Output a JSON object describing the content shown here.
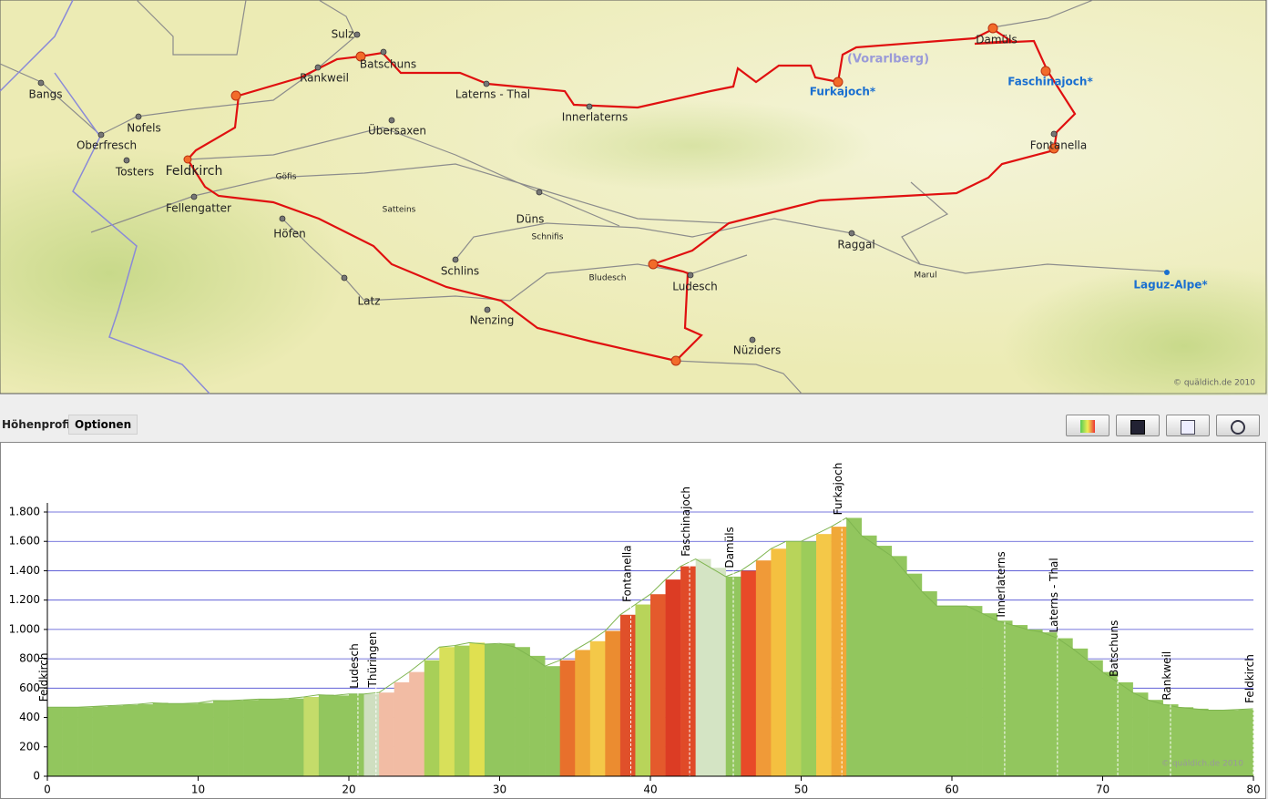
{
  "map": {
    "places": [
      "Sulz",
      "Batschuns",
      "Rankweil",
      "Bangs",
      "Nofels",
      "Oberfresch",
      "Tosters",
      "Feldkirch",
      "Göfis",
      "Übersaxen",
      "Laterns - Thal",
      "Innerlaterns",
      "Satteins",
      "Düns",
      "Schnifis",
      "Fellengatter",
      "Höfen",
      "Schlins",
      "Bludesch",
      "Ludesch",
      "Latz",
      "Nenzing",
      "Nüziders",
      "Raggal",
      "Marul",
      "Damüls",
      "Fontanella"
    ],
    "passes": [
      "Furkajoch*",
      "Faschinajoch*",
      "Laguz-Alpe*"
    ],
    "region": "(Vorarlberg)",
    "copyright": "© quäldich.de 2010"
  },
  "toolbar": {
    "label": "Höhenprofil:",
    "button": "Optionen"
  },
  "chart_data": {
    "type": "area",
    "x": [
      0,
      1,
      2,
      3,
      4,
      5,
      6,
      7,
      8,
      9,
      10,
      11,
      12,
      13,
      14,
      15,
      16,
      17,
      18,
      19,
      20,
      21,
      22,
      23,
      24,
      25,
      26,
      27,
      28,
      29,
      30,
      31,
      32,
      33,
      34,
      35,
      36,
      37,
      38,
      39,
      40,
      41,
      42,
      43,
      44,
      45,
      46,
      47,
      48,
      49,
      50,
      51,
      52,
      53,
      54,
      55,
      56,
      57,
      58,
      59,
      60,
      61,
      62,
      63,
      64,
      65,
      66,
      67,
      68,
      69,
      70,
      71,
      72,
      73,
      74,
      75,
      76,
      77,
      78,
      79,
      80
    ],
    "values": [
      470,
      470,
      470,
      475,
      480,
      485,
      490,
      500,
      495,
      495,
      500,
      515,
      515,
      520,
      525,
      525,
      530,
      540,
      555,
      550,
      560,
      560,
      570,
      640,
      710,
      790,
      880,
      890,
      910,
      900,
      905,
      880,
      820,
      750,
      790,
      860,
      920,
      990,
      1100,
      1170,
      1240,
      1340,
      1430,
      1480,
      1420,
      1360,
      1400,
      1470,
      1550,
      1600,
      1600,
      1650,
      1700,
      1760,
      1640,
      1570,
      1500,
      1380,
      1260,
      1160,
      1160,
      1160,
      1110,
      1060,
      1030,
      1000,
      980,
      940,
      870,
      790,
      710,
      640,
      570,
      520,
      490,
      470,
      460,
      450,
      450,
      455,
      460
    ],
    "colors": [
      "#92c65e",
      "#92c65e",
      "#92c65e",
      "#92c65e",
      "#92c65e",
      "#92c65e",
      "#92c65e",
      "#92c65e",
      "#92c65e",
      "#92c65e",
      "#92c65e",
      "#92c65e",
      "#92c65e",
      "#92c65e",
      "#92c65e",
      "#92c65e",
      "#92c65e",
      "#c4dc6a",
      "#92c65e",
      "#92c65e",
      "#92c65e",
      "#cfdfc0",
      "#f2bca4",
      "#f2bca4",
      "#f2bca4",
      "#a8cf58",
      "#d8e05a",
      "#a8cf58",
      "#e0e050",
      "#92c65e",
      "#92c65e",
      "#92c65e",
      "#92c65e",
      "#92c65e",
      "#e8702c",
      "#f0a838",
      "#f4c848",
      "#eb8c30",
      "#e0502a",
      "#b8d45a",
      "#e45a2c",
      "#dc3c24",
      "#e04a28",
      "#d4e4c4",
      "#d4e4c4",
      "#92c65e",
      "#e84a28",
      "#f09a38",
      "#f4c040",
      "#b8d45a",
      "#9ccc5a",
      "#f4c848",
      "#f0a838",
      "#92c65e",
      "#92c65e",
      "#92c65e",
      "#92c65e",
      "#92c65e",
      "#92c65e",
      "#92c65e",
      "#92c65e",
      "#92c65e",
      "#92c65e",
      "#92c65e",
      "#92c65e",
      "#92c65e",
      "#92c65e",
      "#92c65e",
      "#92c65e",
      "#92c65e",
      "#92c65e",
      "#92c65e",
      "#92c65e",
      "#92c65e",
      "#92c65e",
      "#92c65e",
      "#92c65e",
      "#92c65e",
      "#92c65e",
      "#92c65e",
      "#92c65e"
    ],
    "xlim": [
      0,
      80
    ],
    "xticks": [
      0,
      10,
      20,
      30,
      40,
      50,
      60,
      70,
      80
    ],
    "ylim": [
      0,
      1800
    ],
    "yticks": [
      0,
      200,
      400,
      600,
      800,
      {
        "value": 1000,
        "label": "1.000"
      },
      {
        "value": 1200,
        "label": "1.200"
      },
      {
        "value": 1400,
        "label": "1.400"
      },
      {
        "value": 1600,
        "label": "1.600"
      },
      {
        "value": 1800,
        "label": "1.800"
      }
    ],
    "grid": true,
    "grid_color": "#4a4ad0",
    "waypoints": [
      {
        "name": "Feldkirch",
        "x": 0
      },
      {
        "name": "Ludesch",
        "x": 20.6
      },
      {
        "name": "Thüringen",
        "x": 21.8
      },
      {
        "name": "Fontanella",
        "x": 38.7
      },
      {
        "name": "Faschinajoch",
        "x": 42.6
      },
      {
        "name": "Damüls",
        "x": 45.5
      },
      {
        "name": "Furkajoch",
        "x": 52.7
      },
      {
        "name": "Innerlaterns",
        "x": 63.5
      },
      {
        "name": "Laterns - Thal",
        "x": 67
      },
      {
        "name": "Batschuns",
        "x": 71
      },
      {
        "name": "Rankweil",
        "x": 74.5
      },
      {
        "name": "Feldkirch",
        "x": 80
      }
    ],
    "copyright": "© quäldich.de 2010"
  }
}
